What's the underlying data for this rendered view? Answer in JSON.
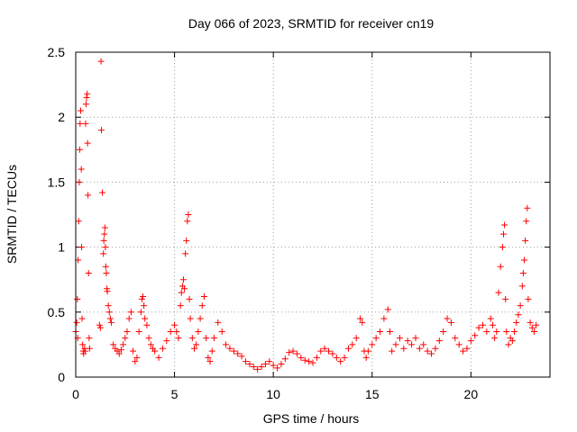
{
  "chart_data": {
    "type": "scatter",
    "title": "Day 066 of 2023, SRMTID for receiver cn19",
    "xlabel": "GPS time / hours",
    "ylabel": "SRMTID / TECUs",
    "xlim": [
      0,
      24
    ],
    "ylim": [
      0,
      2.5
    ],
    "xticks": [
      0,
      5,
      10,
      15,
      20
    ],
    "yticks": [
      0,
      0.5,
      1,
      1.5,
      2,
      2.5
    ],
    "grid": true,
    "marker": "+",
    "color": "#ff0000",
    "series": [
      {
        "name": "cn19",
        "points": [
          [
            0.0,
            0.35
          ],
          [
            0.05,
            0.42
          ],
          [
            0.08,
            0.6
          ],
          [
            0.1,
            0.3
          ],
          [
            0.12,
            0.9
          ],
          [
            0.15,
            1.2
          ],
          [
            0.18,
            1.5
          ],
          [
            0.2,
            1.75
          ],
          [
            0.22,
            1.95
          ],
          [
            0.25,
            2.05
          ],
          [
            0.28,
            1.6
          ],
          [
            0.3,
            1.0
          ],
          [
            0.32,
            0.45
          ],
          [
            0.35,
            0.25
          ],
          [
            0.38,
            0.2
          ],
          [
            0.4,
            0.18
          ],
          [
            0.45,
            0.22
          ],
          [
            0.48,
            0.2
          ],
          [
            0.5,
            1.95
          ],
          [
            0.52,
            2.1
          ],
          [
            0.55,
            2.15
          ],
          [
            0.58,
            2.18
          ],
          [
            0.6,
            1.8
          ],
          [
            0.62,
            1.4
          ],
          [
            0.65,
            0.8
          ],
          [
            0.68,
            0.3
          ],
          [
            0.7,
            0.22
          ],
          [
            1.2,
            0.4
          ],
          [
            1.25,
            0.38
          ],
          [
            1.28,
            2.43
          ],
          [
            1.3,
            1.9
          ],
          [
            1.35,
            1.42
          ],
          [
            1.4,
            0.95
          ],
          [
            1.42,
            1.05
          ],
          [
            1.45,
            1.1
          ],
          [
            1.48,
            1.15
          ],
          [
            1.5,
            1.0
          ],
          [
            1.52,
            0.85
          ],
          [
            1.55,
            0.8
          ],
          [
            1.58,
            0.68
          ],
          [
            1.6,
            0.66
          ],
          [
            1.65,
            0.55
          ],
          [
            1.7,
            0.5
          ],
          [
            1.75,
            0.45
          ],
          [
            1.8,
            0.42
          ],
          [
            1.9,
            0.25
          ],
          [
            2.0,
            0.22
          ],
          [
            2.1,
            0.2
          ],
          [
            2.2,
            0.18
          ],
          [
            2.3,
            0.21
          ],
          [
            2.4,
            0.25
          ],
          [
            2.5,
            0.3
          ],
          [
            2.6,
            0.35
          ],
          [
            2.7,
            0.45
          ],
          [
            2.8,
            0.5
          ],
          [
            2.9,
            0.2
          ],
          [
            3.0,
            0.12
          ],
          [
            3.1,
            0.15
          ],
          [
            3.2,
            0.35
          ],
          [
            3.3,
            0.5
          ],
          [
            3.35,
            0.6
          ],
          [
            3.4,
            0.62
          ],
          [
            3.45,
            0.55
          ],
          [
            3.5,
            0.45
          ],
          [
            3.6,
            0.4
          ],
          [
            3.7,
            0.3
          ],
          [
            3.8,
            0.25
          ],
          [
            3.9,
            0.22
          ],
          [
            4.0,
            0.2
          ],
          [
            4.2,
            0.15
          ],
          [
            4.4,
            0.22
          ],
          [
            4.6,
            0.28
          ],
          [
            4.8,
            0.35
          ],
          [
            5.0,
            0.4
          ],
          [
            5.1,
            0.35
          ],
          [
            5.2,
            0.3
          ],
          [
            5.3,
            0.55
          ],
          [
            5.35,
            0.65
          ],
          [
            5.4,
            0.7
          ],
          [
            5.45,
            0.75
          ],
          [
            5.5,
            0.68
          ],
          [
            5.55,
            0.95
          ],
          [
            5.6,
            1.05
          ],
          [
            5.65,
            1.2
          ],
          [
            5.7,
            1.25
          ],
          [
            5.75,
            0.6
          ],
          [
            5.8,
            0.45
          ],
          [
            5.9,
            0.3
          ],
          [
            6.0,
            0.22
          ],
          [
            6.1,
            0.25
          ],
          [
            6.2,
            0.35
          ],
          [
            6.3,
            0.45
          ],
          [
            6.4,
            0.55
          ],
          [
            6.5,
            0.62
          ],
          [
            6.6,
            0.3
          ],
          [
            6.7,
            0.15
          ],
          [
            6.8,
            0.12
          ],
          [
            6.9,
            0.2
          ],
          [
            7.0,
            0.3
          ],
          [
            7.2,
            0.42
          ],
          [
            7.4,
            0.35
          ],
          [
            7.6,
            0.25
          ],
          [
            7.8,
            0.22
          ],
          [
            8.0,
            0.2
          ],
          [
            8.2,
            0.18
          ],
          [
            8.4,
            0.16
          ],
          [
            8.6,
            0.12
          ],
          [
            8.8,
            0.1
          ],
          [
            9.0,
            0.08
          ],
          [
            9.2,
            0.06
          ],
          [
            9.4,
            0.08
          ],
          [
            9.6,
            0.1
          ],
          [
            9.8,
            0.12
          ],
          [
            10.0,
            0.09
          ],
          [
            10.2,
            0.07
          ],
          [
            10.4,
            0.1
          ],
          [
            10.6,
            0.14
          ],
          [
            10.8,
            0.19
          ],
          [
            11.0,
            0.2
          ],
          [
            11.2,
            0.18
          ],
          [
            11.4,
            0.15
          ],
          [
            11.6,
            0.13
          ],
          [
            11.8,
            0.12
          ],
          [
            12.0,
            0.11
          ],
          [
            12.2,
            0.15
          ],
          [
            12.4,
            0.2
          ],
          [
            12.6,
            0.22
          ],
          [
            12.8,
            0.2
          ],
          [
            13.0,
            0.18
          ],
          [
            13.2,
            0.15
          ],
          [
            13.4,
            0.12
          ],
          [
            13.6,
            0.15
          ],
          [
            13.8,
            0.22
          ],
          [
            14.0,
            0.25
          ],
          [
            14.2,
            0.3
          ],
          [
            14.4,
            0.45
          ],
          [
            14.5,
            0.42
          ],
          [
            14.6,
            0.2
          ],
          [
            14.7,
            0.15
          ],
          [
            14.8,
            0.2
          ],
          [
            15.0,
            0.25
          ],
          [
            15.2,
            0.3
          ],
          [
            15.4,
            0.35
          ],
          [
            15.6,
            0.45
          ],
          [
            15.8,
            0.52
          ],
          [
            15.9,
            0.35
          ],
          [
            16.0,
            0.2
          ],
          [
            16.2,
            0.25
          ],
          [
            16.4,
            0.3
          ],
          [
            16.6,
            0.22
          ],
          [
            16.8,
            0.28
          ],
          [
            17.0,
            0.25
          ],
          [
            17.2,
            0.3
          ],
          [
            17.4,
            0.22
          ],
          [
            17.6,
            0.25
          ],
          [
            17.8,
            0.2
          ],
          [
            18.0,
            0.18
          ],
          [
            18.2,
            0.22
          ],
          [
            18.4,
            0.28
          ],
          [
            18.6,
            0.35
          ],
          [
            18.8,
            0.45
          ],
          [
            19.0,
            0.42
          ],
          [
            19.2,
            0.3
          ],
          [
            19.4,
            0.25
          ],
          [
            19.6,
            0.2
          ],
          [
            19.8,
            0.22
          ],
          [
            20.0,
            0.28
          ],
          [
            20.2,
            0.32
          ],
          [
            20.4,
            0.38
          ],
          [
            20.6,
            0.4
          ],
          [
            20.8,
            0.35
          ],
          [
            21.0,
            0.45
          ],
          [
            21.1,
            0.4
          ],
          [
            21.2,
            0.3
          ],
          [
            21.3,
            0.35
          ],
          [
            21.4,
            0.65
          ],
          [
            21.5,
            0.85
          ],
          [
            21.6,
            1.0
          ],
          [
            21.65,
            1.1
          ],
          [
            21.7,
            1.17
          ],
          [
            21.75,
            0.6
          ],
          [
            21.8,
            0.35
          ],
          [
            21.9,
            0.25
          ],
          [
            22.0,
            0.3
          ],
          [
            22.1,
            0.28
          ],
          [
            22.2,
            0.35
          ],
          [
            22.3,
            0.42
          ],
          [
            22.4,
            0.48
          ],
          [
            22.5,
            0.55
          ],
          [
            22.6,
            0.7
          ],
          [
            22.65,
            0.8
          ],
          [
            22.7,
            0.9
          ],
          [
            22.75,
            1.05
          ],
          [
            22.8,
            1.2
          ],
          [
            22.85,
            1.3
          ],
          [
            22.9,
            0.6
          ],
          [
            23.0,
            0.42
          ],
          [
            23.1,
            0.38
          ],
          [
            23.2,
            0.35
          ],
          [
            23.3,
            0.4
          ]
        ]
      }
    ]
  }
}
